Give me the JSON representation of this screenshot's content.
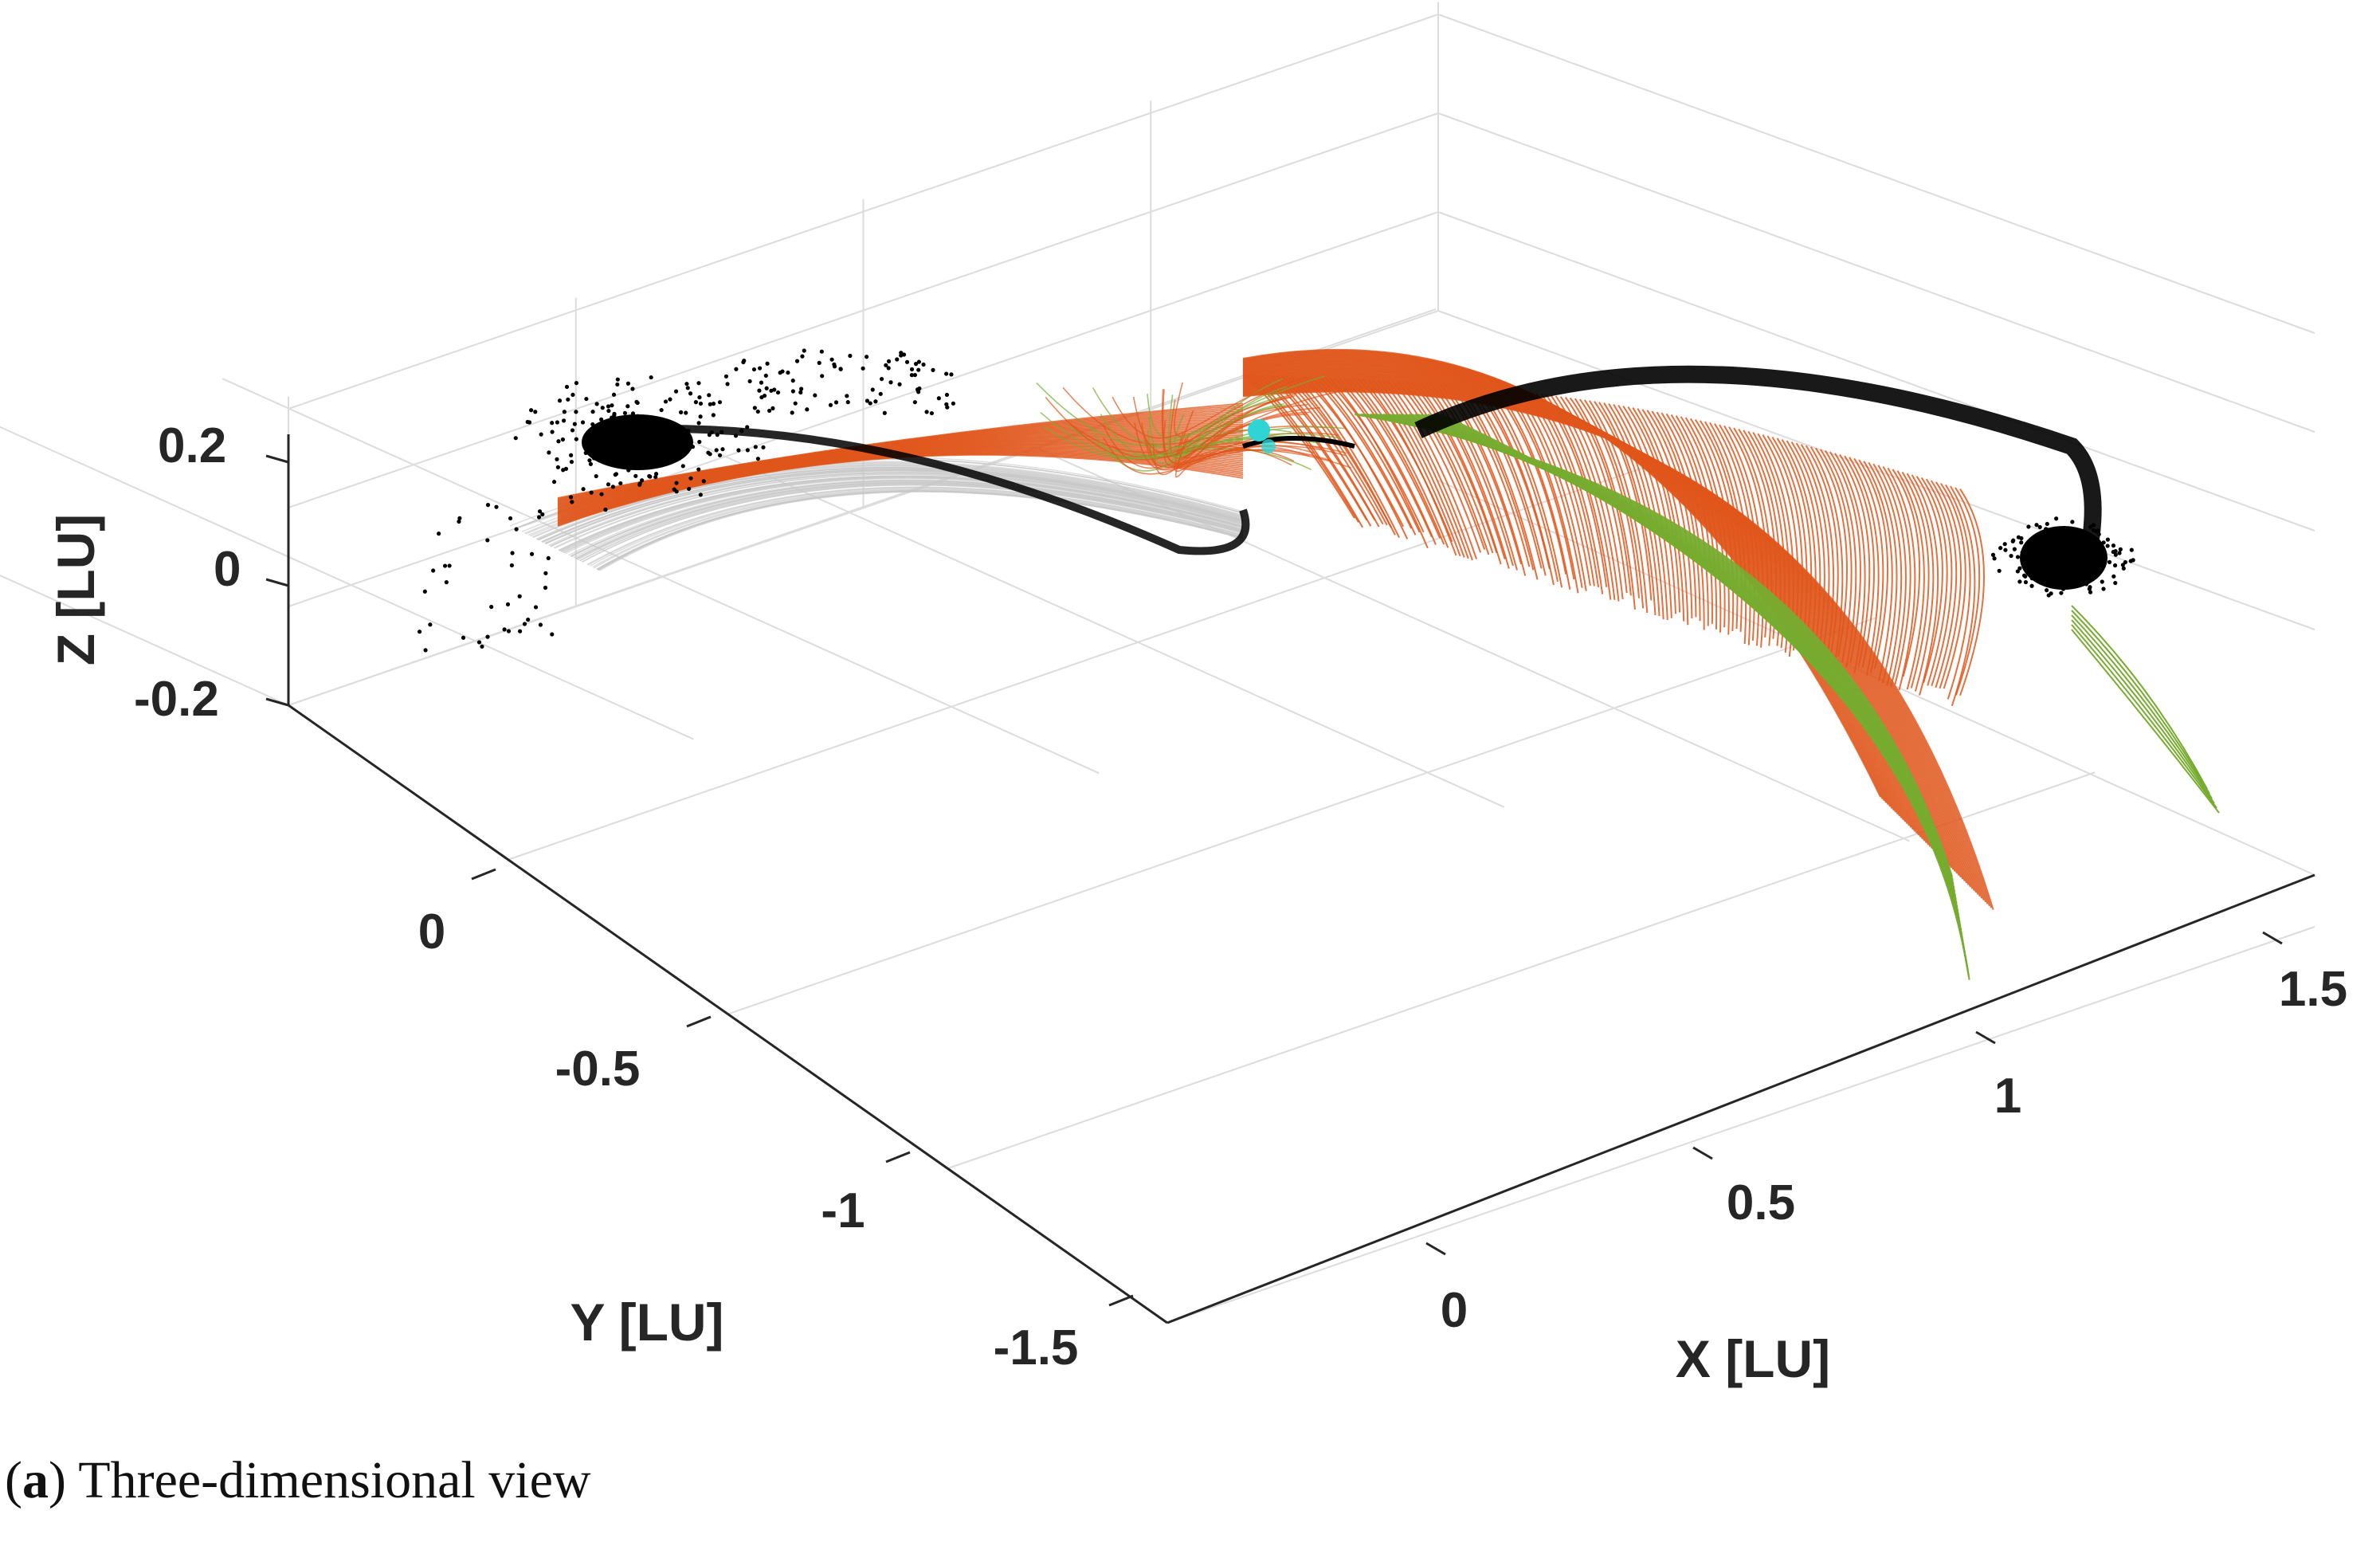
{
  "chart_data": {
    "type": "scatter",
    "view": "3d",
    "title": "",
    "xlabel": "X [LU]",
    "ylabel": "Y [LU]",
    "zlabel": "Z [LU]",
    "xlim": [
      -0.2,
      1.6
    ],
    "ylim": [
      -1.6,
      0.4
    ],
    "zlim": [
      -0.25,
      0.25
    ],
    "xticks": [
      "0",
      "0.5",
      "1",
      "1.5"
    ],
    "yticks": [
      "0",
      "-0.5",
      "-1",
      "-1.5"
    ],
    "zticks": [
      "0.2",
      "0",
      "-0.2"
    ],
    "grid": true,
    "colors": {
      "particles": "#000000",
      "trajectories_gray": "#c8c8c8",
      "trajectories_orange": "#e0561b",
      "trajectories_green": "#77ac30",
      "body": "#2fd4d4",
      "grid": "#dcdcdc",
      "axis": "#262626"
    },
    "series": [
      {
        "marker": "point",
        "x": [
          -0.05,
          0.0,
          0.05,
          0.1,
          0.15,
          0.02,
          -0.02,
          0.08,
          1.2,
          1.25,
          1.3,
          1.35,
          1.4,
          1.32,
          1.28
        ],
        "y": [
          -0.25,
          -0.3,
          -0.35,
          -0.4,
          -0.45,
          -0.32,
          -0.28,
          -0.38,
          0.05,
          0.0,
          -0.05,
          -0.1,
          -0.15,
          -0.08,
          -0.02
        ],
        "z": [
          0.12,
          0.1,
          0.08,
          0.06,
          0.05,
          0.14,
          0.16,
          0.09,
          0.1,
          0.08,
          0.06,
          0.05,
          0.04,
          0.07,
          0.09
        ]
      }
    ]
  },
  "caption": {
    "label": "a",
    "text": " Three-dimensional view"
  }
}
